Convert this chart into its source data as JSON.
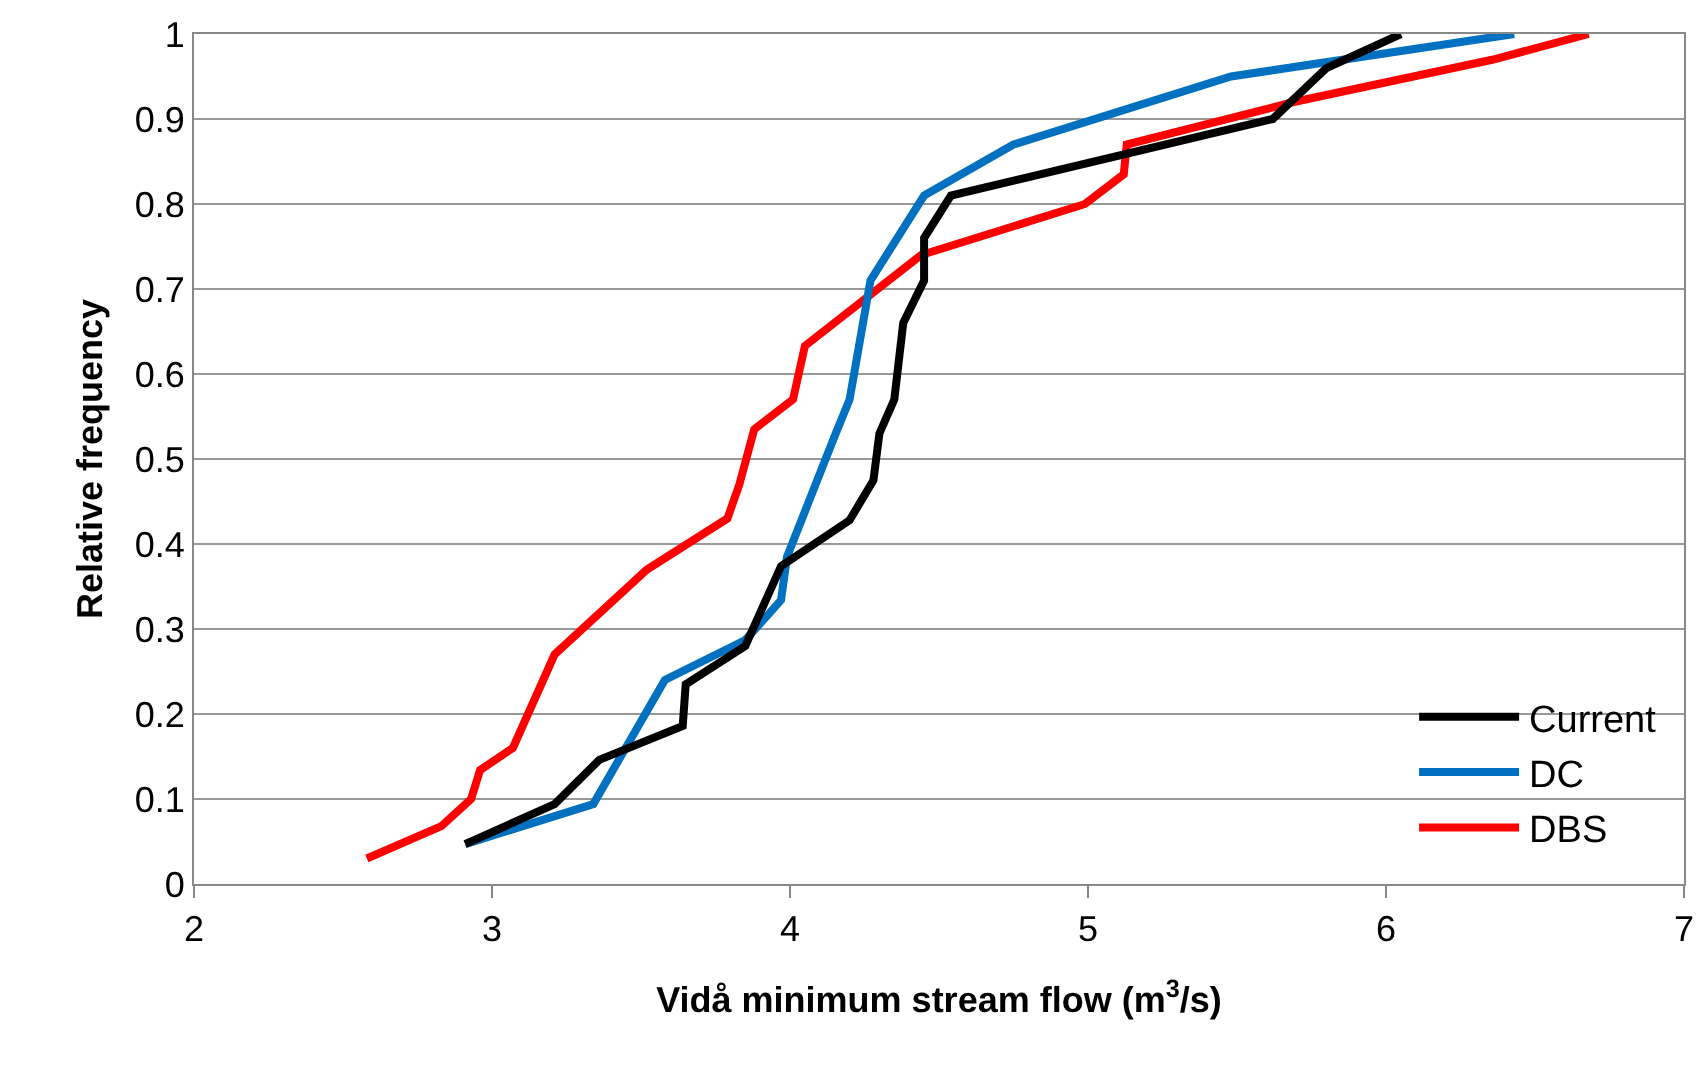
{
  "chart_data": {
    "type": "line",
    "xlabel": "Vidå minimum stream flow (m$^{3}$/s)",
    "ylabel": "Relative frequency",
    "xlim": [
      2,
      7
    ],
    "xticks": [
      2,
      3,
      4,
      5,
      6,
      7
    ],
    "ylim": [
      0,
      1
    ],
    "yticks": [
      0,
      0.1,
      0.2,
      0.3,
      0.4,
      0.5,
      0.6,
      0.7,
      0.8,
      0.9,
      1
    ],
    "grid": "y",
    "legend": "bottom right",
    "marker": "none",
    "line_style": "solid",
    "series": [
      {
        "name": "Current",
        "color": "#000000",
        "x": [
          2.91,
          3.21,
          3.36,
          3.64,
          3.65,
          3.85,
          3.97,
          4.2,
          4.28,
          4.3,
          4.35,
          4.38,
          4.45,
          4.45,
          4.54,
          5.62,
          5.8,
          6.05
        ],
        "values": [
          0.047,
          0.094,
          0.146,
          0.186,
          0.235,
          0.28,
          0.374,
          0.428,
          0.475,
          0.53,
          0.57,
          0.66,
          0.71,
          0.76,
          0.81,
          0.9,
          0.96,
          1
        ]
      },
      {
        "name": "DC",
        "color": "#0070c0",
        "x": [
          2.91,
          3.34,
          3.58,
          3.85,
          3.97,
          3.99,
          4.15,
          4.2,
          4.27,
          4.45,
          4.75,
          5.48,
          6.43
        ],
        "values": [
          0.047,
          0.094,
          0.24,
          0.287,
          0.334,
          0.385,
          0.527,
          0.57,
          0.71,
          0.81,
          0.87,
          0.95,
          1
        ]
      },
      {
        "name": "DBS",
        "color": "#ff0000",
        "x": [
          2.58,
          2.83,
          2.93,
          2.96,
          3.07,
          3.21,
          3.52,
          3.79,
          3.83,
          3.88,
          4.01,
          4.05,
          4.44,
          4.99,
          5.12,
          5.13,
          5.69,
          6.36,
          6.68
        ],
        "values": [
          0.03,
          0.068,
          0.1,
          0.134,
          0.16,
          0.27,
          0.37,
          0.43,
          0.47,
          0.535,
          0.57,
          0.633,
          0.74,
          0.8,
          0.835,
          0.87,
          0.92,
          0.97,
          1
        ]
      }
    ]
  }
}
